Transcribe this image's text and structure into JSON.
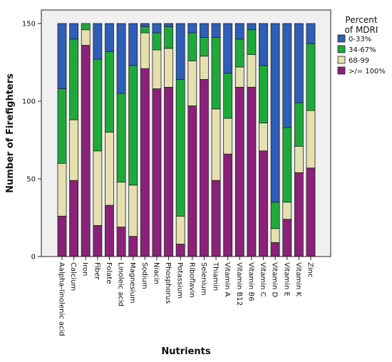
{
  "chart_data": {
    "type": "bar",
    "stacked": true,
    "xlabel": "Nutrients",
    "ylabel": "Number of Firefighters",
    "ylim": [
      0,
      150
    ],
    "yticks": [
      0,
      50,
      100,
      150
    ],
    "grid": false,
    "legend_placement": "right",
    "legend_title": [
      "Percent",
      "of MDRI"
    ],
    "categories": [
      "Aalpha-linolenic acid",
      "Calcium",
      "Iron",
      "Fiber",
      "Folate",
      "Linoleic acid",
      "Magnesium",
      "Sodium",
      "Niacin",
      "Phosphorus",
      "Potassium",
      "Riboflavin",
      "Selenium",
      "Thiamin",
      "Vitamin A",
      "Vitamin B12",
      "Vitamin B6",
      "Vitamin C",
      "Vitamin D",
      "Vitamin E",
      "Vitamin K",
      "Zinc"
    ],
    "series": [
      {
        "name": ">/= 100%",
        "color": "#8B2178",
        "values": [
          26,
          49,
          136,
          20,
          33,
          19,
          13,
          121,
          108,
          109,
          8,
          97,
          114,
          49,
          66,
          109,
          109,
          68,
          9,
          24,
          54,
          57
        ]
      },
      {
        "name": "68-99",
        "color": "#E6E0AE",
        "values": [
          34,
          39,
          10,
          48,
          47,
          29,
          33,
          23,
          25,
          25,
          18,
          29,
          15,
          46,
          23,
          13,
          21,
          18,
          9,
          11,
          17,
          37
        ]
      },
      {
        "name": "34-67%",
        "color": "#1EAA3A",
        "values": [
          48,
          52,
          4,
          59,
          52,
          57,
          77,
          4,
          11,
          14,
          88,
          18,
          12,
          46,
          29,
          18,
          16,
          37,
          17,
          48,
          28,
          43
        ]
      },
      {
        "name": "0-33%",
        "color": "#2E5EB8",
        "values": [
          42,
          10,
          0,
          23,
          18,
          45,
          27,
          2,
          6,
          2,
          36,
          6,
          9,
          9,
          32,
          10,
          4,
          27,
          115,
          67,
          51,
          13
        ]
      }
    ],
    "legend_order": [
      "0-33%",
      "34-67%",
      "68-99",
      ">/= 100%"
    ]
  }
}
